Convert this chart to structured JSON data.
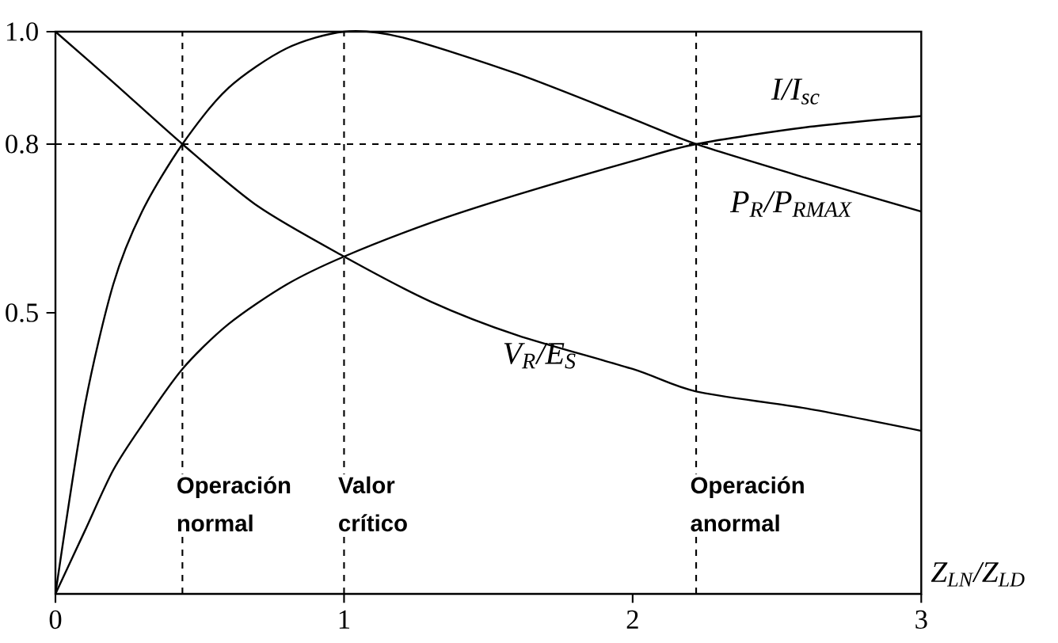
{
  "chart_data": {
    "type": "line",
    "xlabel": "Z$_{LN}$/Z$_{LD}$",
    "xlim": [
      0,
      3
    ],
    "ylim": [
      0,
      1
    ],
    "xticks": [
      0,
      1,
      2,
      3
    ],
    "yticks": [
      0.5,
      0.8,
      {
        "value": 1,
        "label": "1.0"
      }
    ],
    "marker": "none",
    "line_style": "solid",
    "series": [
      {
        "name": "I/I$_{sc}$",
        "color": "#000000",
        "x": [
          0,
          0.1,
          0.2,
          0.3,
          0.44,
          0.6,
          0.8,
          1,
          1.3,
          1.6,
          2,
          2.22,
          2.6,
          3
        ],
        "values": [
          0,
          0.11,
          0.22,
          0.3,
          0.4,
          0.48,
          0.55,
          0.6,
          0.66,
          0.71,
          0.77,
          0.8,
          0.83,
          0.85
        ]
      },
      {
        "name": "P$_{R}$/P$_{RMAX}$",
        "color": "#000000",
        "x": [
          0,
          0.1,
          0.2,
          0.3,
          0.44,
          0.6,
          0.8,
          1,
          1.2,
          1.6,
          2,
          2.22,
          2.6,
          3
        ],
        "values": [
          0,
          0.33,
          0.55,
          0.68,
          0.8,
          0.9,
          0.97,
          1,
          0.99,
          0.925,
          0.845,
          0.8,
          0.74,
          0.68
        ]
      },
      {
        "name": "V$_{R}$/E$_{S}$",
        "color": "#000000",
        "x": [
          0,
          0.2,
          0.44,
          0.7,
          1,
          1.3,
          1.6,
          2,
          2.22,
          2.6,
          3
        ],
        "values": [
          1,
          0.91,
          0.8,
          0.69,
          0.6,
          0.52,
          0.46,
          0.4,
          0.36,
          0.33,
          0.29
        ]
      }
    ],
    "ref_lines": [
      {
        "axis": "y",
        "value": 0.8,
        "line_style": "dashed"
      },
      {
        "axis": "x",
        "value": 0.44,
        "label": "Operación normal",
        "line_style": "dashed"
      },
      {
        "axis": "x",
        "value": 1,
        "label": "Valor crítico",
        "line_style": "dashed"
      },
      {
        "axis": "x",
        "value": 2.22,
        "label": "Operación anormal",
        "line_style": "dashed"
      }
    ]
  }
}
